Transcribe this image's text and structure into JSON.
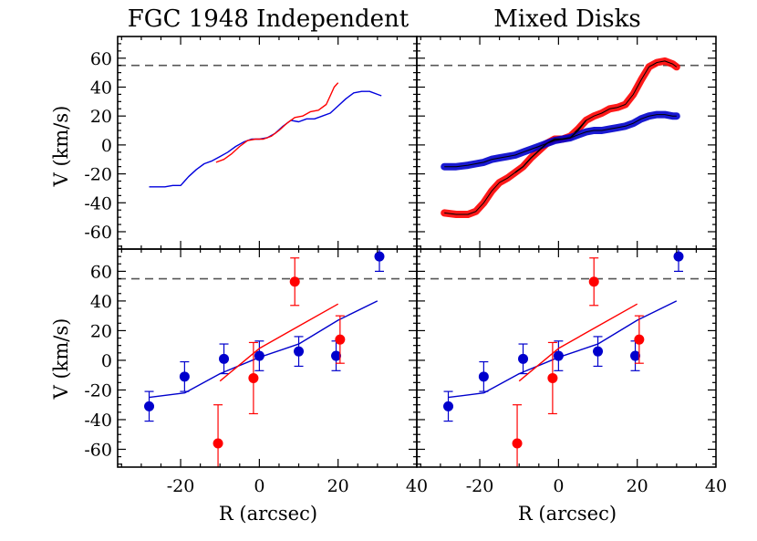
{
  "chart_data": [
    {
      "type": "line",
      "panel": "top-left",
      "title": "FGC 1948 Independent",
      "xlabel": "",
      "ylabel": "V (km/s)",
      "xlim": [
        -36,
        40
      ],
      "ylim": [
        -72,
        75
      ],
      "x_ticks": [
        -20,
        0,
        20,
        40
      ],
      "y_ticks": [
        60,
        40,
        20,
        0,
        -20,
        -40,
        -60
      ],
      "y_tick_labels": [
        "60",
        "40",
        "20",
        "0",
        "-20",
        "-40",
        "-60"
      ],
      "reference_line": {
        "y": 55,
        "style": "dashed",
        "color": "#555555"
      },
      "series": [
        {
          "color": "#0000dd",
          "line": [
            [
              -28,
              -29
            ],
            [
              -26,
              -29
            ],
            [
              -24,
              -29
            ],
            [
              -22,
              -28
            ],
            [
              -20,
              -28
            ],
            [
              -19,
              -25
            ],
            [
              -18,
              -22
            ],
            [
              -16,
              -17
            ],
            [
              -14,
              -13
            ],
            [
              -12,
              -11
            ],
            [
              -10,
              -8
            ],
            [
              -8,
              -5
            ],
            [
              -6,
              -1
            ],
            [
              -4,
              2
            ],
            [
              -2,
              4
            ],
            [
              0,
              4
            ],
            [
              2,
              5
            ],
            [
              4,
              8
            ],
            [
              6,
              13
            ],
            [
              8,
              17
            ],
            [
              10,
              16
            ],
            [
              12,
              18
            ],
            [
              14,
              18
            ],
            [
              16,
              20
            ],
            [
              18,
              22
            ],
            [
              20,
              27
            ],
            [
              22,
              32
            ],
            [
              24,
              36
            ],
            [
              26,
              37
            ],
            [
              28,
              37
            ],
            [
              30,
              35
            ],
            [
              31,
              34
            ]
          ]
        },
        {
          "color": "#ff0000",
          "line": [
            [
              -11,
              -12
            ],
            [
              -9,
              -10
            ],
            [
              -7,
              -6
            ],
            [
              -5,
              -1
            ],
            [
              -3,
              3
            ],
            [
              -1,
              4
            ],
            [
              1,
              4
            ],
            [
              3,
              6
            ],
            [
              5,
              10
            ],
            [
              7,
              15
            ],
            [
              9,
              19
            ],
            [
              11,
              20
            ],
            [
              13,
              23
            ],
            [
              15,
              24
            ],
            [
              17,
              28
            ],
            [
              18,
              34
            ],
            [
              19,
              40
            ],
            [
              20,
              43
            ]
          ]
        }
      ]
    },
    {
      "type": "line",
      "panel": "top-right",
      "title": "Mixed Disks",
      "xlabel": "",
      "ylabel": "",
      "xlim": [
        -36,
        40
      ],
      "ylim": [
        -72,
        75
      ],
      "x_ticks": [
        -20,
        0,
        20,
        40
      ],
      "y_ticks": [
        60,
        40,
        20,
        0,
        -20,
        -40,
        -60
      ],
      "reference_line": {
        "y": 55,
        "style": "dashed",
        "color": "#555555"
      },
      "series": [
        {
          "color": "#ff0000",
          "band": true,
          "line": [
            [
              -29,
              -47
            ],
            [
              -26,
              -48
            ],
            [
              -23,
              -48
            ],
            [
              -21,
              -46
            ],
            [
              -19,
              -40
            ],
            [
              -17,
              -32
            ],
            [
              -15,
              -26
            ],
            [
              -13,
              -23
            ],
            [
              -11,
              -19
            ],
            [
              -9,
              -15
            ],
            [
              -7,
              -9
            ],
            [
              -5,
              -4
            ],
            [
              -3,
              1
            ],
            [
              -1,
              4
            ],
            [
              1,
              4
            ],
            [
              3,
              6
            ],
            [
              5,
              11
            ],
            [
              7,
              17
            ],
            [
              9,
              20
            ],
            [
              11,
              22
            ],
            [
              13,
              25
            ],
            [
              15,
              26
            ],
            [
              17,
              28
            ],
            [
              19,
              35
            ],
            [
              21,
              45
            ],
            [
              23,
              54
            ],
            [
              25,
              57
            ],
            [
              27,
              58
            ],
            [
              29,
              56
            ],
            [
              30,
              54
            ]
          ]
        },
        {
          "color": "#0000cc",
          "band": true,
          "line": [
            [
              -29,
              -15
            ],
            [
              -26,
              -15
            ],
            [
              -23,
              -14
            ],
            [
              -21,
              -13
            ],
            [
              -19,
              -12
            ],
            [
              -17,
              -10
            ],
            [
              -15,
              -9
            ],
            [
              -13,
              -8
            ],
            [
              -11,
              -7
            ],
            [
              -9,
              -5
            ],
            [
              -7,
              -3
            ],
            [
              -5,
              -1
            ],
            [
              -3,
              1
            ],
            [
              -1,
              3
            ],
            [
              1,
              4
            ],
            [
              3,
              5
            ],
            [
              5,
              7
            ],
            [
              7,
              9
            ],
            [
              9,
              10
            ],
            [
              11,
              10
            ],
            [
              13,
              11
            ],
            [
              15,
              12
            ],
            [
              17,
              13
            ],
            [
              19,
              15
            ],
            [
              21,
              18
            ],
            [
              23,
              20
            ],
            [
              25,
              21
            ],
            [
              27,
              21
            ],
            [
              29,
              20
            ],
            [
              30,
              20
            ]
          ]
        },
        {
          "color": "#000000",
          "line": [
            [
              -11,
              -19
            ],
            [
              -9,
              -15
            ],
            [
              -7,
              -9
            ],
            [
              -5,
              -4
            ],
            [
              -3,
              1
            ],
            [
              -1,
              4
            ],
            [
              1,
              4
            ],
            [
              3,
              5
            ],
            [
              5,
              10
            ],
            [
              7,
              17
            ]
          ]
        }
      ]
    },
    {
      "type": "scatter",
      "panel": "bottom-left",
      "title": "",
      "xlabel": "R (arcsec)",
      "ylabel": "V (km/s)",
      "xlim": [
        -36,
        40
      ],
      "ylim": [
        -72,
        75
      ],
      "x_ticks": [
        -20,
        0,
        20,
        40
      ],
      "x_tick_labels": [
        "-20",
        "0",
        "20",
        "40"
      ],
      "y_ticks": [
        60,
        40,
        20,
        0,
        -20,
        -40,
        -60
      ],
      "y_tick_labels": [
        "60",
        "40",
        "20",
        "0",
        "-20",
        "-40",
        "-60"
      ],
      "reference_line": {
        "y": 55,
        "style": "dashed",
        "color": "#555555"
      },
      "series": [
        {
          "color": "#0000cc",
          "line": [
            [
              -28,
              -25
            ],
            [
              -19,
              -22
            ],
            [
              -10,
              -9
            ],
            [
              0,
              2
            ],
            [
              10,
              11
            ],
            [
              20,
              27
            ],
            [
              30,
              40
            ]
          ],
          "points": [
            {
              "x": -28,
              "y": -31,
              "err": 10
            },
            {
              "x": -19,
              "y": -11,
              "err": 10
            },
            {
              "x": -9,
              "y": 1,
              "err": 10
            },
            {
              "x": 0,
              "y": 3,
              "err": 10
            },
            {
              "x": 10,
              "y": 6,
              "err": 10
            },
            {
              "x": 19.5,
              "y": 3,
              "err": 10
            },
            {
              "x": 30.5,
              "y": 70,
              "err": 10
            }
          ]
        },
        {
          "color": "#ff0000",
          "line": [
            [
              -10,
              -14
            ],
            [
              0,
              8
            ],
            [
              10,
              23
            ],
            [
              20,
              38
            ]
          ],
          "points": [
            {
              "x": -10.5,
              "y": -56,
              "err": 26
            },
            {
              "x": -1.5,
              "y": -12,
              "err": 24
            },
            {
              "x": 9,
              "y": 53,
              "err": 16
            },
            {
              "x": 20.5,
              "y": 14,
              "err": 16
            }
          ]
        }
      ]
    },
    {
      "type": "scatter",
      "panel": "bottom-right",
      "title": "",
      "xlabel": "R (arcsec)",
      "ylabel": "",
      "xlim": [
        -36,
        40
      ],
      "ylim": [
        -72,
        75
      ],
      "x_ticks": [
        -20,
        0,
        20,
        40
      ],
      "x_tick_labels": [
        "-20",
        "0",
        "20",
        "40"
      ],
      "y_ticks": [
        60,
        40,
        20,
        0,
        -20,
        -40,
        -60
      ],
      "reference_line": {
        "y": 55,
        "style": "dashed",
        "color": "#555555"
      },
      "series": [
        {
          "color": "#0000cc",
          "line": [
            [
              -28,
              -25
            ],
            [
              -19,
              -22
            ],
            [
              -10,
              -9
            ],
            [
              0,
              2
            ],
            [
              10,
              11
            ],
            [
              20,
              27
            ],
            [
              30,
              40
            ]
          ],
          "points": [
            {
              "x": -28,
              "y": -31,
              "err": 10
            },
            {
              "x": -19,
              "y": -11,
              "err": 10
            },
            {
              "x": -9,
              "y": 1,
              "err": 10
            },
            {
              "x": 0,
              "y": 3,
              "err": 10
            },
            {
              "x": 10,
              "y": 6,
              "err": 10
            },
            {
              "x": 19.5,
              "y": 3,
              "err": 10
            },
            {
              "x": 30.5,
              "y": 70,
              "err": 10
            }
          ]
        },
        {
          "color": "#ff0000",
          "line": [
            [
              -10,
              -14
            ],
            [
              0,
              8
            ],
            [
              10,
              23
            ],
            [
              20,
              38
            ]
          ],
          "points": [
            {
              "x": -10.5,
              "y": -56,
              "err": 26
            },
            {
              "x": -1.5,
              "y": -12,
              "err": 24
            },
            {
              "x": 9,
              "y": 53,
              "err": 16
            },
            {
              "x": 20.5,
              "y": 14,
              "err": 16
            }
          ]
        }
      ]
    }
  ]
}
